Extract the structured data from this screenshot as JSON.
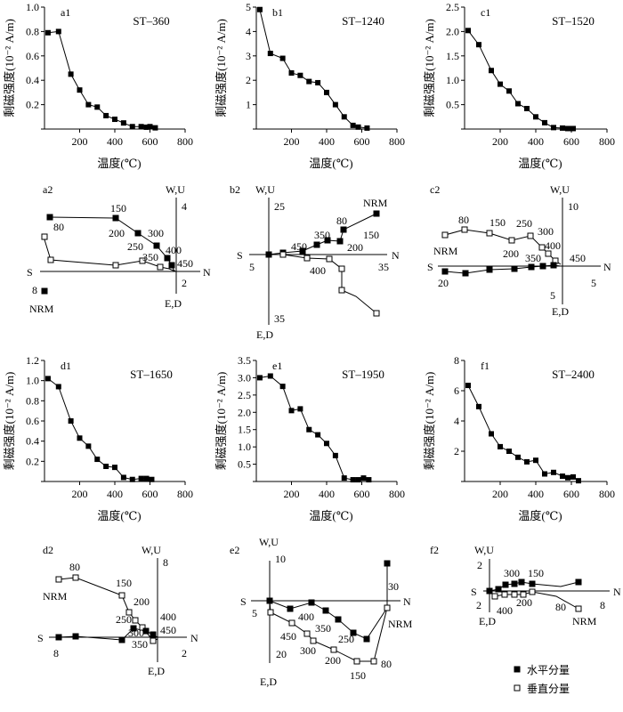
{
  "ylabel": "剩磁强度(10⁻² A/m)",
  "xlabel": "温度(℃)",
  "legend": {
    "filled": "水平分量",
    "open": "垂直分量"
  },
  "chart_data": [
    {
      "type": "line",
      "panel": "a1",
      "sample": "ST–360",
      "ylim": [
        0,
        1.0
      ],
      "yticks": [
        "",
        "0.2",
        "0.4",
        "0.6",
        "0.8",
        "1.0"
      ],
      "yticks_v": [
        0,
        0.2,
        0.4,
        0.6,
        0.8,
        1.0
      ],
      "x": [
        20,
        80,
        150,
        200,
        250,
        300,
        350,
        400,
        450,
        500,
        550,
        580,
        600,
        630
      ],
      "y": [
        0.79,
        0.8,
        0.45,
        0.32,
        0.2,
        0.18,
        0.11,
        0.08,
        0.05,
        0.02,
        0.02,
        0.015,
        0.02,
        0.01
      ]
    },
    {
      "type": "line",
      "panel": "b1",
      "sample": "ST–1240",
      "ylim": [
        0,
        5
      ],
      "yticks": [
        "",
        "1",
        "2",
        "3",
        "4",
        "5"
      ],
      "yticks_v": [
        0,
        1,
        2,
        3,
        4,
        5
      ],
      "x": [
        20,
        80,
        150,
        200,
        250,
        300,
        350,
        400,
        450,
        500,
        550,
        580,
        630
      ],
      "y": [
        4.9,
        3.1,
        2.9,
        2.3,
        2.2,
        1.95,
        1.9,
        1.5,
        1.0,
        0.5,
        0.15,
        0.08,
        0.04
      ]
    },
    {
      "type": "line",
      "panel": "c1",
      "sample": "ST–1520",
      "ylim": [
        0,
        2.5
      ],
      "yticks": [
        "",
        "0.5",
        "1.0",
        "1.5",
        "2.0",
        "2.5"
      ],
      "yticks_v": [
        0,
        0.5,
        1.0,
        1.5,
        2.0,
        2.5
      ],
      "x": [
        20,
        80,
        150,
        200,
        250,
        300,
        350,
        400,
        450,
        500,
        550,
        580,
        610
      ],
      "y": [
        2.02,
        1.73,
        1.2,
        0.92,
        0.78,
        0.52,
        0.42,
        0.25,
        0.13,
        0.03,
        0.02,
        0.01,
        0.01
      ]
    },
    {
      "type": "line",
      "panel": "d1",
      "sample": "ST–1650",
      "ylim": [
        0,
        1.2
      ],
      "yticks": [
        "",
        "0.2",
        "0.4",
        "0.6",
        "0.8",
        "1.0",
        "1.2"
      ],
      "yticks_v": [
        0,
        0.2,
        0.4,
        0.6,
        0.8,
        1.0,
        1.2
      ],
      "x": [
        20,
        80,
        150,
        200,
        250,
        300,
        350,
        400,
        450,
        500,
        550,
        580,
        610
      ],
      "y": [
        1.02,
        0.94,
        0.6,
        0.43,
        0.35,
        0.22,
        0.15,
        0.14,
        0.04,
        0.02,
        0.03,
        0.03,
        0.02
      ]
    },
    {
      "type": "line",
      "panel": "e1",
      "sample": "ST–1950",
      "ylim": [
        0,
        3.5
      ],
      "yticks": [
        "",
        "0.5",
        "1.0",
        "1.5",
        "2.0",
        "2.5",
        "3.0",
        "3.5"
      ],
      "yticks_v": [
        0,
        0.5,
        1.0,
        1.5,
        2.0,
        2.5,
        3.0,
        3.5
      ],
      "x": [
        20,
        80,
        150,
        200,
        250,
        300,
        350,
        400,
        450,
        500,
        550,
        580,
        610,
        640
      ],
      "y": [
        3.0,
        3.05,
        2.75,
        2.05,
        2.1,
        1.5,
        1.35,
        1.1,
        0.75,
        0.1,
        0.05,
        0.05,
        0.1,
        0.05
      ]
    },
    {
      "type": "line",
      "panel": "f1",
      "sample": "ST–2400",
      "ylim": [
        0,
        8
      ],
      "yticks": [
        "",
        "2",
        "4",
        "6",
        "8"
      ],
      "yticks_v": [
        0,
        2,
        4,
        6,
        8
      ],
      "x": [
        20,
        80,
        150,
        200,
        250,
        300,
        350,
        400,
        450,
        500,
        550,
        580,
        610,
        640
      ],
      "y": [
        6.35,
        4.95,
        3.15,
        2.3,
        2.0,
        1.6,
        1.3,
        1.4,
        0.5,
        0.6,
        0.35,
        0.25,
        0.3,
        0.05
      ]
    }
  ],
  "xticks": [
    "200",
    "400",
    "600",
    "800"
  ],
  "xticks_v": [
    200,
    400,
    600,
    800
  ],
  "zijderveld": [
    {
      "panel": "a2",
      "labels": [
        "W,U",
        "4",
        "N",
        "S",
        "8",
        "2",
        "E,D",
        "NRM",
        "80",
        "150",
        "200",
        "250",
        "300",
        "350",
        "400",
        "450"
      ]
    },
    {
      "panel": "b2",
      "labels": [
        "W,U",
        "25",
        "N",
        "S",
        "5",
        "35",
        "35",
        "E,D",
        "NRM",
        "80",
        "150",
        "200",
        "350",
        "400",
        "450"
      ]
    },
    {
      "panel": "c2",
      "labels": [
        "W,U",
        "10",
        "N",
        "S",
        "20",
        "5",
        "5",
        "E,D",
        "NRM",
        "80",
        "150",
        "200",
        "250",
        "300",
        "350",
        "400",
        "450"
      ]
    },
    {
      "panel": "d2",
      "labels": [
        "W,U",
        "8",
        "N",
        "S",
        "8",
        "2",
        "E,D",
        "NRM",
        "80",
        "150",
        "200",
        "250",
        "300",
        "350",
        "400",
        "450"
      ]
    },
    {
      "panel": "e2",
      "labels": [
        "W,U",
        "10",
        "N",
        "S",
        "5",
        "30",
        "20",
        "E,D",
        "NRM",
        "80",
        "150",
        "200",
        "250",
        "300",
        "350",
        "400",
        "450"
      ]
    },
    {
      "panel": "f2",
      "labels": [
        "W,U",
        "2",
        "N",
        "S",
        "2",
        "8",
        "E,D",
        "NRM",
        "80",
        "150",
        "200",
        "300",
        "400"
      ]
    }
  ]
}
